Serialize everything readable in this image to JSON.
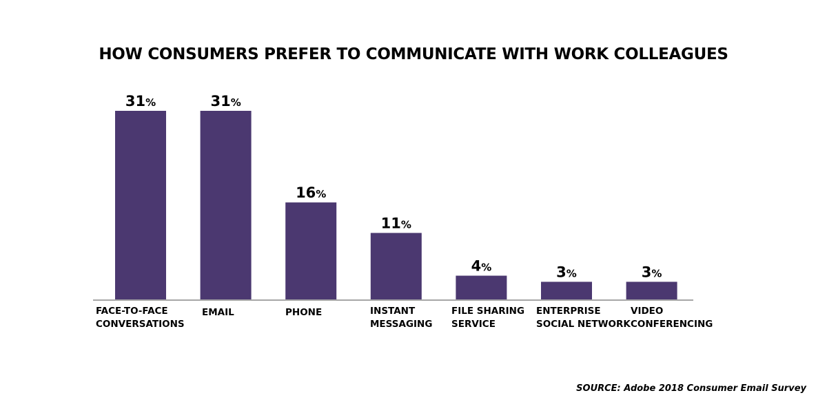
{
  "chart_data": {
    "type": "bar",
    "title": "HOW CONSUMERS PREFER TO COMMUNICATE WITH WORK COLLEAGUES",
    "categories": [
      [
        "FACE-TO-FACE",
        "CONVERSATIONS"
      ],
      [
        "EMAIL"
      ],
      [
        "PHONE"
      ],
      [
        "INSTANT",
        "MESSAGING"
      ],
      [
        "FILE SHARING",
        "SERVICE"
      ],
      [
        "ENTERPRISE",
        "SOCIAL NETWORK"
      ],
      [
        "VIDEO",
        "CONFERENCING"
      ]
    ],
    "values": [
      31,
      31,
      16,
      11,
      4,
      3,
      3
    ],
    "value_suffix": "%",
    "bar_color": "#4b3870",
    "axis_color": "#a6a6a6",
    "ylim": [
      0,
      31
    ],
    "grid": false,
    "legend": "none"
  },
  "source": "SOURCE: Adobe 2018 Consumer Email Survey"
}
